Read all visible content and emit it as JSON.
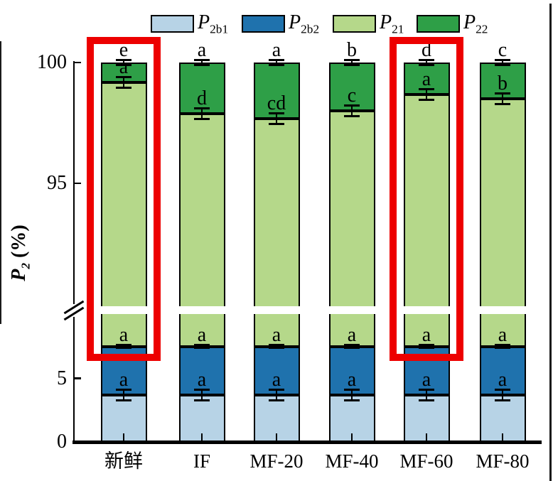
{
  "chart_data": {
    "type": "bar",
    "stacked": true,
    "title": "",
    "xlabel": "",
    "ylabel_parts": {
      "base": "P",
      "sub": "2",
      "unit": "(%)"
    },
    "categories": [
      "新鲜",
      "IF",
      "MF-20",
      "MF-40",
      "MF-60",
      "MF-80"
    ],
    "series": [
      {
        "name": "P2b1",
        "label_base": "P",
        "label_sub": "2b1",
        "color": "#b7d3e6",
        "values": [
          3.7,
          3.7,
          3.7,
          3.7,
          3.7,
          3.7
        ],
        "letters": [
          "a",
          "a",
          "a",
          "a",
          "a",
          "a"
        ]
      },
      {
        "name": "P2b2",
        "label_base": "P",
        "label_sub": "2b2",
        "color": "#1f72ad",
        "values": [
          3.8,
          3.8,
          3.8,
          3.8,
          3.8,
          3.8
        ],
        "letters": [
          "a",
          "a",
          "a",
          "a",
          "a",
          "a"
        ]
      },
      {
        "name": "P21",
        "label_base": "P",
        "label_sub": "21",
        "color": "#b5d88a",
        "values": [
          91.7,
          90.4,
          90.2,
          90.5,
          91.2,
          91.0
        ],
        "letters": [
          "a",
          "d",
          "cd",
          "c",
          "a",
          "b"
        ]
      },
      {
        "name": "P22",
        "label_base": "P",
        "label_sub": "22",
        "color": "#2e9f47",
        "values": [
          0.8,
          2.1,
          2.3,
          2.0,
          1.3,
          1.5
        ],
        "letters": [
          "e",
          "a",
          "a",
          "b",
          "d",
          "c"
        ]
      }
    ],
    "yticks": [
      {
        "label": "0",
        "v": 0
      },
      {
        "label": "5",
        "v": 5
      },
      {
        "label": "95",
        "v": 95
      },
      {
        "label": "100",
        "v": 100
      }
    ],
    "axis_break": {
      "lower_max": 10.7,
      "upper_min": 89.6
    },
    "ylim_lower": [
      0,
      10.7
    ],
    "ylim_upper": [
      89.6,
      100.8
    ],
    "grid": false,
    "legend_position": "top",
    "highlighted_categories": [
      "新鲜",
      "MF-60"
    ],
    "highlight_color": "#ed0000",
    "bar_border_color": "#000000",
    "error_bar_color": "#000000"
  }
}
